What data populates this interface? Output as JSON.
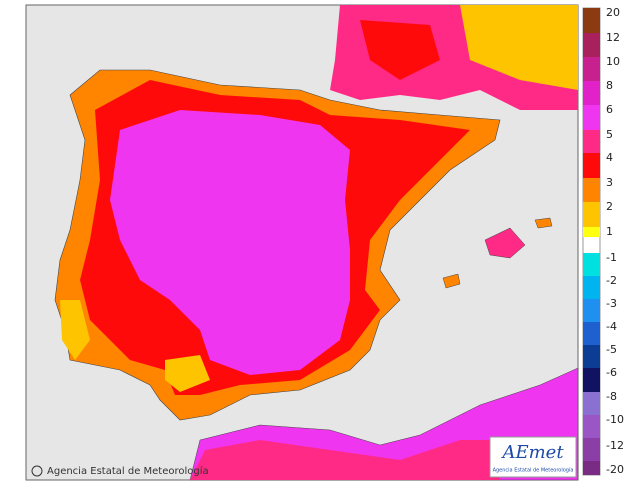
{
  "map": {
    "credit": "Agencia Estatal de Meteorología",
    "logo": {
      "name": "AEmet",
      "subtitle": "Agencia Estatal de Meteorología"
    },
    "legend": [
      {
        "value": 20,
        "color": "#8b3a12"
      },
      {
        "value": 12,
        "color": "#a8205c"
      },
      {
        "value": 10,
        "color": "#c8208e"
      },
      {
        "value": 8,
        "color": "#e022c8"
      },
      {
        "value": 6,
        "color": "#f035f0"
      },
      {
        "value": 5,
        "color": "#ff2a86"
      },
      {
        "value": 4,
        "color": "#ff0a0a"
      },
      {
        "value": 3,
        "color": "#ff8400"
      },
      {
        "value": 2,
        "color": "#ffc400"
      },
      {
        "value": 1,
        "color": "#ffff10"
      },
      {
        "value": -1,
        "color": "#00e0e0"
      },
      {
        "value": -2,
        "color": "#00b4f0"
      },
      {
        "value": -3,
        "color": "#2090f0"
      },
      {
        "value": -4,
        "color": "#1e60d0"
      },
      {
        "value": -5,
        "color": "#0c3c94"
      },
      {
        "value": -6,
        "color": "#121262"
      },
      {
        "value": -8,
        "color": "#8a70d0"
      },
      {
        "value": -10,
        "color": "#9a56c4"
      },
      {
        "value": -12,
        "color": "#8a3ea6"
      },
      {
        "value": -20,
        "color": "#7a2c84"
      }
    ]
  }
}
